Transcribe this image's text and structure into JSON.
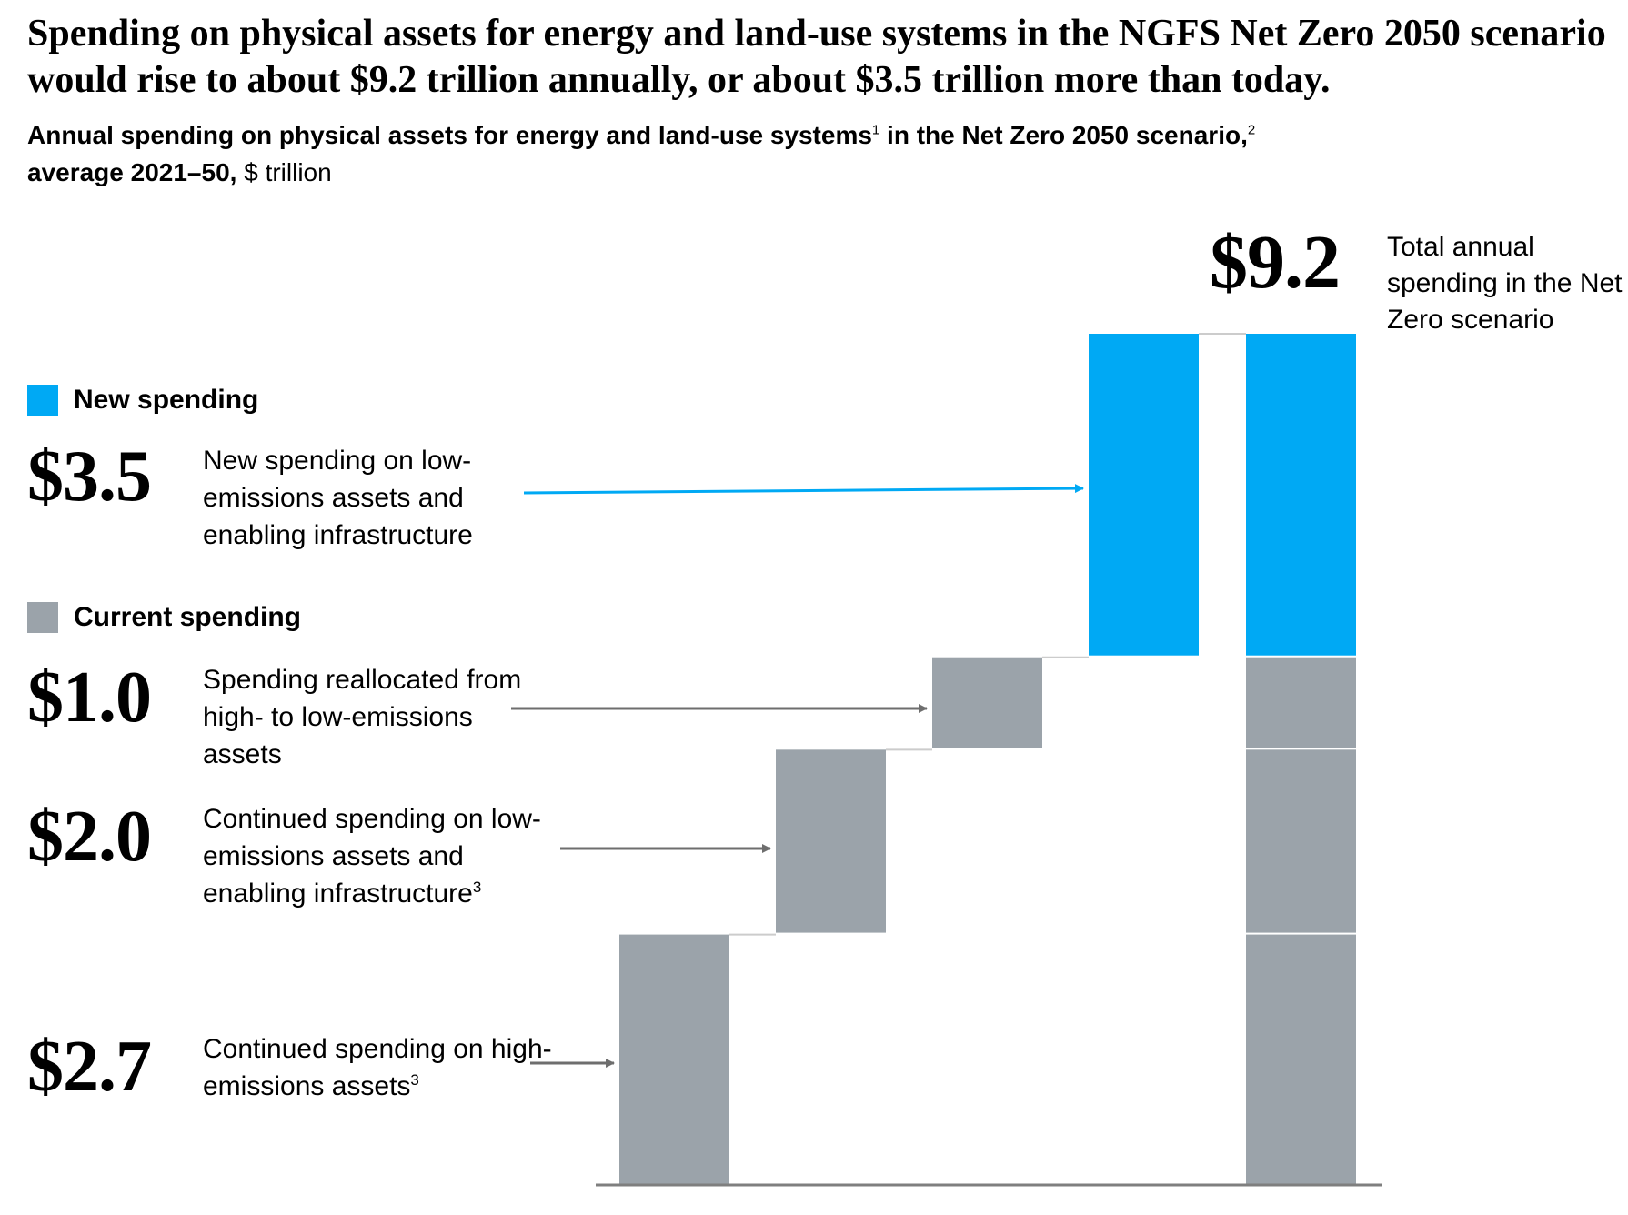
{
  "header": {
    "title": "Spending on physical assets for energy and land-use systems in the NGFS Net Zero 2050 scenario would rise to about $9.2 trillion annually, or about $3.5 trillion more than today.",
    "subtitle_bold_1": "Annual spending on physical assets for energy and land-use systems",
    "subtitle_sup_1": "1",
    "subtitle_bold_2": " in the Net Zero 2050 scenario,",
    "subtitle_sup_2": "2",
    "subtitle_bold_3": "average 2021–50,",
    "subtitle_unit": " $ trillion"
  },
  "legend": {
    "new_label": "New spending",
    "current_label": "Current spending"
  },
  "annotations": {
    "new": {
      "value": "$3.5",
      "text": "New spending on low-emissions assets and enabling infrastructure"
    },
    "reallocated": {
      "value": "$1.0",
      "text": "Spending reallocated from high- to low-emissions assets"
    },
    "continued_low": {
      "value": "$2.0",
      "text": "Continued spending on low-emissions assets and enabling infrastructure",
      "sup": "3"
    },
    "continued_high": {
      "value": "$2.7",
      "text": "Continued spending on high-emissions assets",
      "sup": "3"
    },
    "total": {
      "value": "$9.2",
      "text": "Total annual spending in the Net Zero scenario"
    }
  },
  "colors": {
    "new_spending": "#00A9F4",
    "current_spending": "#9BA3AA",
    "arrow_new": "#00A9F4",
    "arrow_current": "#6E6E6E",
    "connector": "#CCCCCC",
    "axis": "#7F7F7F"
  },
  "chart_data": {
    "type": "bar",
    "subtype": "waterfall",
    "unit": "$ trillion",
    "ylim": [
      0,
      9.2
    ],
    "steps": [
      {
        "name": "Continued spending on high-emissions assets",
        "value": 2.7,
        "base": 0,
        "group": "current"
      },
      {
        "name": "Continued spending on low-emissions assets and enabling infrastructure",
        "value": 2.0,
        "base": 2.7,
        "group": "current"
      },
      {
        "name": "Spending reallocated from high- to low-emissions assets",
        "value": 1.0,
        "base": 4.7,
        "group": "current"
      },
      {
        "name": "New spending on low-emissions assets and enabling infrastructure",
        "value": 3.5,
        "base": 5.7,
        "group": "new"
      }
    ],
    "total": {
      "name": "Total annual spending in the Net Zero scenario",
      "value": 9.2
    }
  }
}
